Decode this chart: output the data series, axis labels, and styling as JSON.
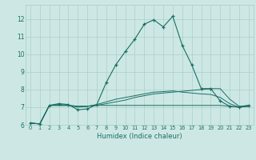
{
  "xlabel": "Humidex (Indice chaleur)",
  "bg_color": "#cde8e4",
  "grid_color": "#aacfca",
  "line_color": "#1a6e65",
  "xlim": [
    -0.5,
    23.5
  ],
  "ylim": [
    6.0,
    12.8
  ],
  "yticks": [
    6,
    7,
    8,
    9,
    10,
    11,
    12
  ],
  "xticks": [
    0,
    1,
    2,
    3,
    4,
    5,
    6,
    7,
    8,
    9,
    10,
    11,
    12,
    13,
    14,
    15,
    16,
    17,
    18,
    19,
    20,
    21,
    22,
    23
  ],
  "series": {
    "main": [
      6.1,
      6.05,
      7.1,
      7.2,
      7.15,
      6.85,
      6.9,
      7.15,
      8.4,
      9.4,
      10.15,
      10.85,
      11.7,
      11.95,
      11.55,
      12.15,
      10.5,
      9.4,
      8.05,
      8.05,
      7.35,
      7.05,
      7.0,
      7.1
    ],
    "line2": [
      6.1,
      6.05,
      7.1,
      7.1,
      7.1,
      7.05,
      7.05,
      7.1,
      7.2,
      7.3,
      7.4,
      7.55,
      7.65,
      7.75,
      7.8,
      7.85,
      7.9,
      7.95,
      8.0,
      8.05,
      8.05,
      7.45,
      7.05,
      7.1
    ],
    "line3": [
      6.1,
      6.05,
      7.1,
      7.15,
      7.1,
      7.0,
      7.05,
      7.15,
      7.3,
      7.45,
      7.55,
      7.65,
      7.75,
      7.85,
      7.88,
      7.92,
      7.85,
      7.8,
      7.75,
      7.72,
      7.55,
      7.2,
      7.0,
      7.05
    ],
    "line4": [
      6.1,
      6.05,
      7.1,
      7.1,
      7.1,
      7.05,
      7.05,
      7.1,
      7.1,
      7.1,
      7.1,
      7.1,
      7.1,
      7.1,
      7.1,
      7.1,
      7.1,
      7.1,
      7.1,
      7.1,
      7.1,
      7.05,
      7.0,
      7.05
    ]
  }
}
